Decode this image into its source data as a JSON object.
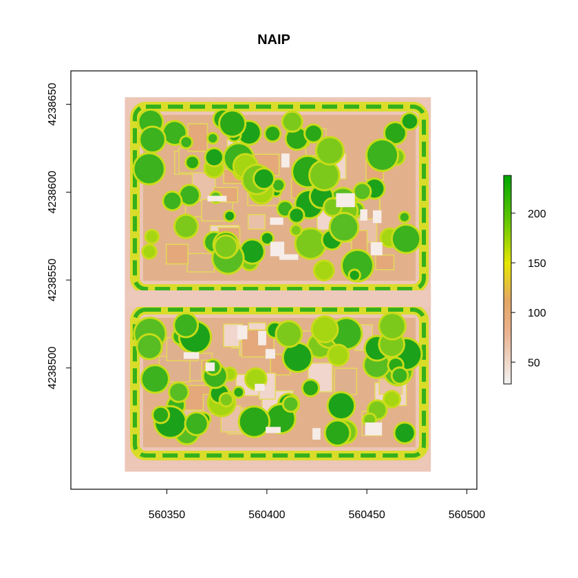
{
  "title": "NAIP",
  "chart_data": {
    "type": "heatmap",
    "title": "NAIP",
    "xlabel": "",
    "ylabel": "",
    "xlim": [
      560302,
      560505
    ],
    "ylim": [
      4238431,
      4238669
    ],
    "x_ticks": [
      {
        "value": 560350,
        "label": "560350"
      },
      {
        "value": 560400,
        "label": "560400"
      },
      {
        "value": 560450,
        "label": "560450"
      },
      {
        "value": 560500,
        "label": "560500"
      }
    ],
    "y_ticks": [
      {
        "value": 4238650,
        "label": "4238650"
      },
      {
        "value": 4238600,
        "label": "4238600"
      },
      {
        "value": 4238550,
        "label": "4238550"
      },
      {
        "value": 4238500,
        "label": "4238500"
      }
    ],
    "raster_extent": {
      "xmin": 560329,
      "xmax": 560482,
      "ymin": 4238441,
      "ymax": 4238654
    },
    "colorbar": {
      "range": [
        28,
        238
      ],
      "ticks": [
        {
          "value": 50,
          "label": "50"
        },
        {
          "value": 100,
          "label": "100"
        },
        {
          "value": 150,
          "label": "150"
        },
        {
          "value": 200,
          "label": "200"
        }
      ],
      "colors": [
        "#f2f2f2",
        "#eab28f",
        "#e6e600",
        "#00a600"
      ]
    },
    "legend_position": "right"
  }
}
